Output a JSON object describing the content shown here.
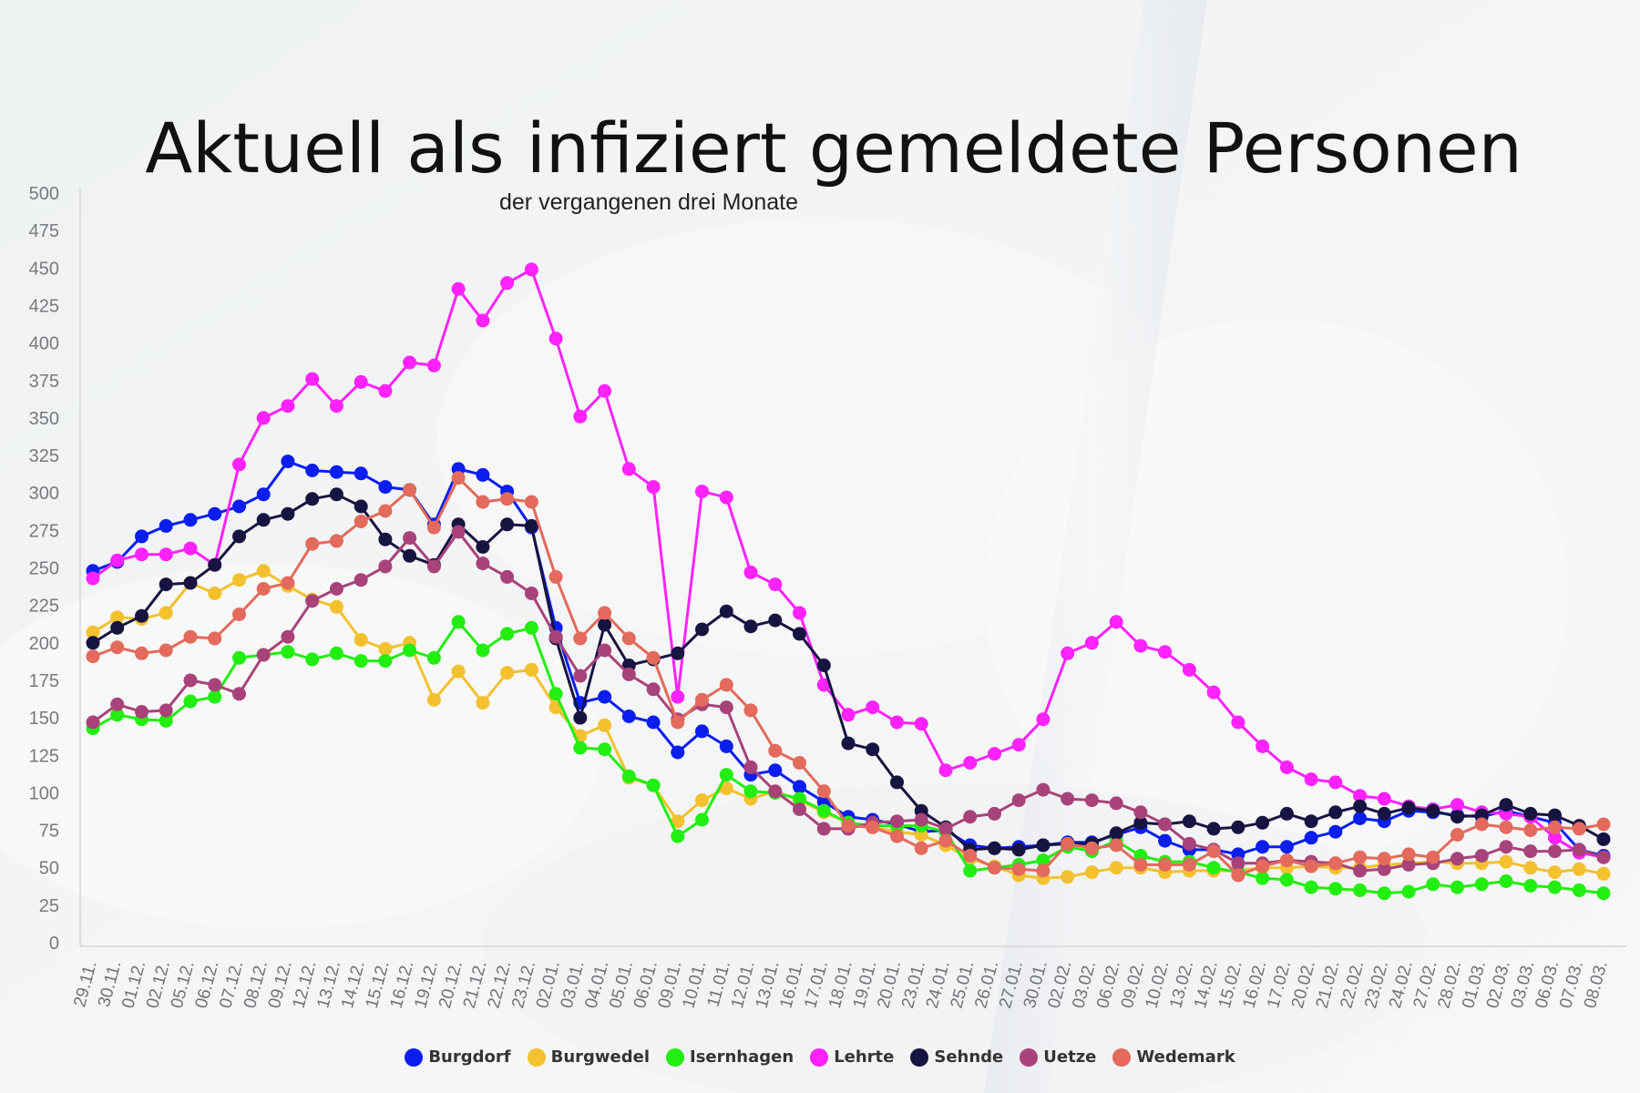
{
  "chart_data": {
    "type": "line",
    "title": "Aktuell als infiziert gemeldete Personen",
    "subtitle": "der vergangenen drei Monate",
    "ylim": [
      0,
      500
    ],
    "yticks": [
      0,
      25,
      50,
      75,
      100,
      125,
      150,
      175,
      200,
      225,
      250,
      275,
      300,
      325,
      350,
      375,
      400,
      425,
      450,
      475,
      500
    ],
    "grid": false,
    "legend_position": "bottom",
    "categories": [
      "29.11.",
      "30.11.",
      "01.12.",
      "02.12.",
      "05.12.",
      "06.12.",
      "07.12.",
      "08.12.",
      "09.12.",
      "12.12.",
      "13.12.",
      "14.12.",
      "15.12.",
      "16.12.",
      "19.12.",
      "20.12.",
      "21.12.",
      "22.12.",
      "23.12.",
      "02.01.",
      "03.01.",
      "04.01.",
      "05.01.",
      "06.01.",
      "09.01.",
      "10.01.",
      "11.01.",
      "12.01.",
      "13.01.",
      "16.01.",
      "17.01.",
      "18.01.",
      "19.01.",
      "20.01.",
      "23.01.",
      "24.01.",
      "25.01.",
      "26.01.",
      "27.01.",
      "30.01.",
      "02.02.",
      "03.02.",
      "06.02.",
      "09.02.",
      "10.02.",
      "13.02.",
      "14.02.",
      "15.02.",
      "16.02.",
      "17.02.",
      "20.02.",
      "21.02.",
      "22.02.",
      "23.02.",
      "24.02.",
      "27.02.",
      "28.02.",
      "01.03.",
      "02.03.",
      "03.03.",
      "06.03.",
      "07.03.",
      "08.03."
    ],
    "series": [
      {
        "name": "Burgdorf",
        "color": "#0a1ef0",
        "values": [
          248,
          254,
          271,
          278,
          282,
          286,
          291,
          299,
          321,
          315,
          314,
          313,
          304,
          302,
          279,
          316,
          312,
          301,
          277,
          210,
          160,
          164,
          151,
          147,
          127,
          141,
          131,
          112,
          115,
          104,
          94,
          84,
          82,
          79,
          74,
          75,
          65,
          63,
          64,
          65,
          67,
          67,
          72,
          77,
          68,
          62,
          62,
          59,
          64,
          64,
          70,
          74,
          83,
          81,
          88,
          87,
          85,
          84,
          88,
          84,
          80,
          62,
          58
        ]
      },
      {
        "name": "Burgwedel",
        "color": "#f3c12e",
        "values": [
          207,
          217,
          216,
          220,
          240,
          233,
          242,
          248,
          238,
          229,
          224,
          202,
          196,
          200,
          162,
          181,
          160,
          180,
          182,
          157,
          138,
          145,
          110,
          105,
          81,
          95,
          103,
          96,
          101,
          95,
          87,
          80,
          77,
          74,
          72,
          65,
          56,
          51,
          45,
          43,
          44,
          47,
          50,
          50,
          47,
          48,
          48,
          48,
          50,
          50,
          51,
          50,
          50,
          52,
          53,
          54,
          53,
          53,
          54,
          50,
          47,
          49,
          46
        ]
      },
      {
        "name": "Isernhagen",
        "color": "#22ee11",
        "values": [
          143,
          152,
          149,
          148,
          161,
          164,
          190,
          192,
          194,
          189,
          193,
          188,
          188,
          195,
          190,
          214,
          195,
          206,
          210,
          166,
          130,
          129,
          111,
          105,
          71,
          82,
          112,
          101,
          100,
          96,
          88,
          80,
          78,
          78,
          78,
          74,
          48,
          50,
          52,
          55,
          64,
          61,
          68,
          58,
          54,
          54,
          50,
          47,
          43,
          42,
          37,
          36,
          35,
          33,
          34,
          39,
          37,
          39,
          41,
          38,
          37,
          35,
          33
        ]
      },
      {
        "name": "Lehrte",
        "color": "#ff22ff",
        "values": [
          243,
          255,
          259,
          259,
          263,
          252,
          319,
          350,
          358,
          376,
          358,
          374,
          368,
          387,
          385,
          436,
          415,
          440,
          449,
          403,
          351,
          368,
          316,
          304,
          164,
          301,
          297,
          247,
          239,
          220,
          172,
          152,
          157,
          147,
          146,
          115,
          120,
          126,
          132,
          149,
          193,
          200,
          214,
          198,
          194,
          182,
          167,
          147,
          131,
          117,
          109,
          107,
          98,
          96,
          91,
          89,
          92,
          87,
          86,
          84,
          70,
          60,
          57
        ]
      },
      {
        "name": "Sehnde",
        "color": "#171441",
        "values": [
          200,
          210,
          218,
          239,
          240,
          252,
          271,
          282,
          286,
          296,
          299,
          291,
          269,
          258,
          252,
          279,
          264,
          279,
          278,
          203,
          150,
          212,
          185,
          189,
          193,
          209,
          221,
          211,
          215,
          206,
          185,
          133,
          129,
          107,
          88,
          77,
          62,
          63,
          62,
          65,
          66,
          66,
          73,
          80,
          79,
          81,
          76,
          77,
          80,
          86,
          81,
          87,
          91,
          86,
          90,
          88,
          84,
          85,
          92,
          86,
          85,
          78,
          69
        ]
      },
      {
        "name": "Uetze",
        "color": "#a8437a",
        "values": [
          147,
          159,
          154,
          155,
          175,
          172,
          166,
          192,
          204,
          228,
          236,
          242,
          251,
          270,
          251,
          274,
          253,
          244,
          233,
          204,
          178,
          195,
          179,
          169,
          149,
          159,
          157,
          117,
          101,
          89,
          76,
          76,
          80,
          81,
          82,
          76,
          84,
          86,
          95,
          102,
          96,
          95,
          93,
          87,
          79,
          66,
          62,
          53,
          53,
          55,
          54,
          53,
          48,
          49,
          52,
          53,
          56,
          58,
          64,
          61,
          61,
          62,
          57
        ]
      },
      {
        "name": "Wedemark",
        "color": "#e36a5c",
        "values": [
          191,
          197,
          193,
          195,
          204,
          203,
          219,
          236,
          240,
          266,
          268,
          281,
          288,
          302,
          277,
          310,
          294,
          296,
          294,
          244,
          203,
          220,
          203,
          190,
          147,
          162,
          172,
          155,
          128,
          120,
          101,
          78,
          77,
          71,
          63,
          68,
          58,
          50,
          49,
          48,
          66,
          63,
          65,
          52,
          52,
          52,
          61,
          45,
          51,
          55,
          51,
          53,
          57,
          56,
          59,
          57,
          72,
          79,
          77,
          75,
          77,
          76,
          79
        ]
      }
    ]
  }
}
